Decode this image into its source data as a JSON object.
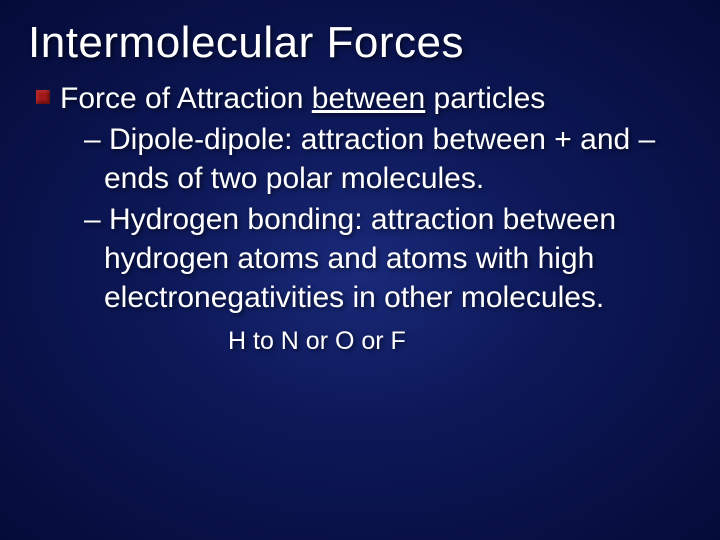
{
  "slide": {
    "background_gradient": [
      "#1a2a7a",
      "#0d1858",
      "#050b38"
    ],
    "text_color": "#ffffff",
    "bullet_color": "#a01818",
    "font_family": "Arial",
    "title": "Intermolecular Forces",
    "title_fontsize": 44,
    "main_bullet": {
      "prefix": "Force of Attraction ",
      "underlined": "between",
      "suffix": " particles",
      "fontsize": 30
    },
    "sub_bullets": [
      "– Dipole-dipole:  attraction between + and – ends of two polar molecules.",
      "– Hydrogen bonding:  attraction between hydrogen atoms and atoms with high electronegativities in other molecules."
    ],
    "sub_fontsize": 30,
    "footnote": "H to N or O or F",
    "footnote_fontsize": 25
  }
}
